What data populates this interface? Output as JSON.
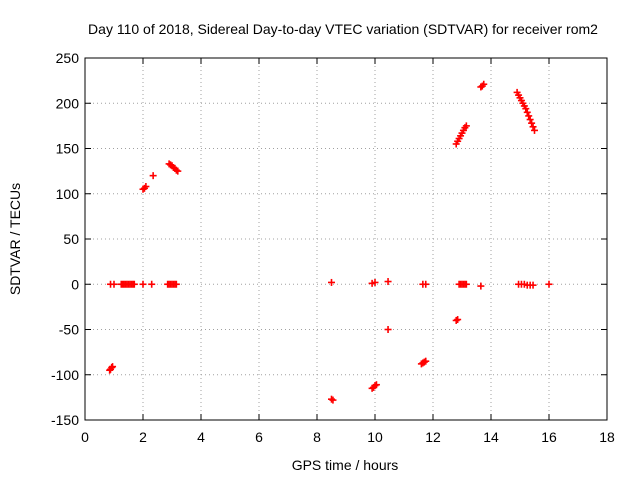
{
  "chart_data": {
    "type": "scatter",
    "title": "Day 110 of 2018, Sidereal Day-to-day VTEC variation (SDTVAR) for receiver rom2",
    "xlabel": "GPS time / hours",
    "ylabel": "SDTVAR / TECUs",
    "xlim": [
      0,
      18
    ],
    "ylim": [
      -150,
      250
    ],
    "xticks": [
      0,
      2,
      4,
      6,
      8,
      10,
      12,
      14,
      16,
      18
    ],
    "yticks": [
      -150,
      -100,
      -50,
      0,
      50,
      100,
      150,
      200,
      250
    ],
    "grid": true,
    "marker": "plus",
    "colors": {
      "points": "#ff0000",
      "grid": "#a0a0a0",
      "axes": "#000000"
    },
    "series": [
      {
        "name": "SDTVAR",
        "points": [
          [
            0.85,
            -95
          ],
          [
            0.88,
            -94
          ],
          [
            0.92,
            -92
          ],
          [
            0.95,
            -91
          ],
          [
            0.88,
            0
          ],
          [
            1.0,
            0
          ],
          [
            1.25,
            0
          ],
          [
            1.3,
            0
          ],
          [
            1.35,
            0
          ],
          [
            1.4,
            0
          ],
          [
            1.45,
            0
          ],
          [
            1.5,
            0
          ],
          [
            1.55,
            0
          ],
          [
            1.6,
            0
          ],
          [
            1.65,
            0
          ],
          [
            1.7,
            0
          ],
          [
            2.0,
            0
          ],
          [
            2.3,
            0
          ],
          [
            2.0,
            105
          ],
          [
            2.05,
            106
          ],
          [
            2.1,
            108
          ],
          [
            2.35,
            120
          ],
          [
            2.9,
            133
          ],
          [
            2.95,
            132
          ],
          [
            3.0,
            131
          ],
          [
            3.05,
            129
          ],
          [
            3.1,
            128
          ],
          [
            3.15,
            126
          ],
          [
            3.2,
            125
          ],
          [
            2.85,
            0
          ],
          [
            2.9,
            0
          ],
          [
            2.95,
            0
          ],
          [
            3.0,
            0
          ],
          [
            3.05,
            0
          ],
          [
            3.1,
            0
          ],
          [
            3.15,
            0
          ],
          [
            8.5,
            -127
          ],
          [
            8.55,
            -128
          ],
          [
            8.5,
            2
          ],
          [
            9.9,
            -115
          ],
          [
            9.95,
            -114
          ],
          [
            10.0,
            -112
          ],
          [
            10.05,
            -111
          ],
          [
            9.9,
            1
          ],
          [
            10.0,
            2
          ],
          [
            10.45,
            3
          ],
          [
            10.45,
            -50
          ],
          [
            11.6,
            -88
          ],
          [
            11.65,
            -87
          ],
          [
            11.7,
            -86
          ],
          [
            11.75,
            -85
          ],
          [
            11.65,
            0
          ],
          [
            11.75,
            0
          ],
          [
            12.8,
            -40
          ],
          [
            12.85,
            -39
          ],
          [
            12.8,
            155
          ],
          [
            12.85,
            158
          ],
          [
            12.9,
            161
          ],
          [
            12.95,
            164
          ],
          [
            13.0,
            167
          ],
          [
            13.05,
            170
          ],
          [
            13.1,
            173
          ],
          [
            13.15,
            175
          ],
          [
            12.9,
            0
          ],
          [
            12.95,
            0
          ],
          [
            13.0,
            0
          ],
          [
            13.05,
            0
          ],
          [
            13.1,
            0
          ],
          [
            13.15,
            0
          ],
          [
            13.65,
            -2
          ],
          [
            13.65,
            218
          ],
          [
            13.7,
            219
          ],
          [
            13.75,
            221
          ],
          [
            14.9,
            212
          ],
          [
            14.95,
            209
          ],
          [
            15.0,
            206
          ],
          [
            15.05,
            203
          ],
          [
            15.1,
            200
          ],
          [
            15.15,
            197
          ],
          [
            15.2,
            194
          ],
          [
            15.25,
            190
          ],
          [
            15.3,
            186
          ],
          [
            15.35,
            182
          ],
          [
            15.4,
            178
          ],
          [
            15.45,
            174
          ],
          [
            15.5,
            170
          ],
          [
            14.95,
            0
          ],
          [
            15.05,
            0
          ],
          [
            15.15,
            0
          ],
          [
            15.25,
            -1
          ],
          [
            15.35,
            -1
          ],
          [
            15.45,
            -1
          ],
          [
            16.0,
            0
          ]
        ]
      }
    ]
  }
}
